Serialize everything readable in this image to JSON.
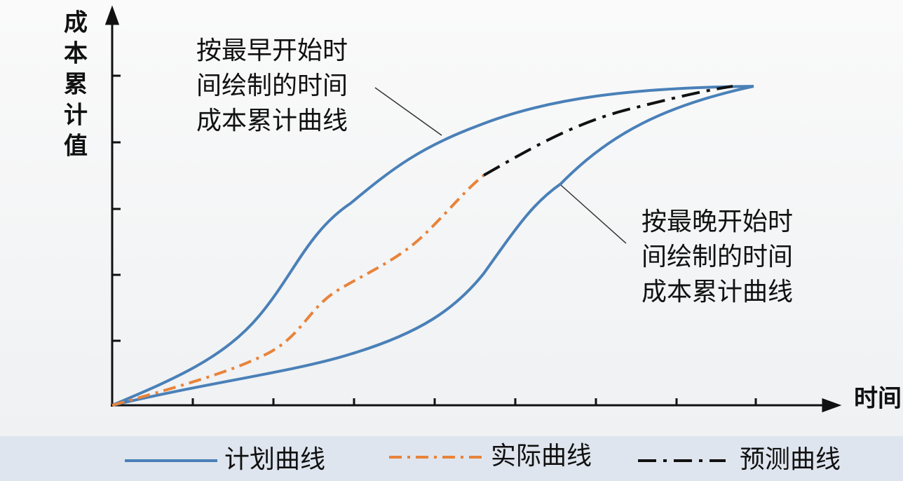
{
  "axes": {
    "y_label": [
      "成",
      "本",
      "累",
      "计",
      "值"
    ],
    "x_label": "时间"
  },
  "annotations": [
    {
      "lines": [
        "按最早开始时",
        "间绘制的时间",
        "成本累计曲线"
      ]
    },
    {
      "lines": [
        "按最晚开始时",
        "间绘制的时间",
        "成本累计曲线"
      ]
    }
  ],
  "legend": [
    "计划曲线",
    "实际曲线",
    "预测曲线"
  ]
}
